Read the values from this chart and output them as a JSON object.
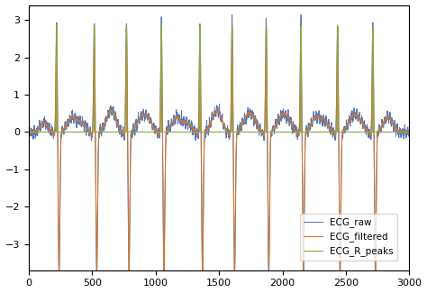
{
  "title": "",
  "xlabel": "",
  "ylabel": "",
  "xlim": [
    0,
    3000
  ],
  "ylim": [
    -3.7,
    3.4
  ],
  "xticks": [
    0,
    500,
    1000,
    1500,
    2000,
    2500,
    3000
  ],
  "yticks": [
    -3,
    -2,
    -1,
    0,
    1,
    2,
    3
  ],
  "ecg_raw_color": "#5577bb",
  "ecg_filtered_color": "#cc7733",
  "ecg_rpeaks_color": "#88aa44",
  "legend_labels": [
    "ECG_raw",
    "ECG_filtered",
    "ECG_R_peaks"
  ],
  "fs": 360,
  "n_samples": 3001,
  "figsize": [
    4.74,
    3.25
  ],
  "dpi": 100
}
